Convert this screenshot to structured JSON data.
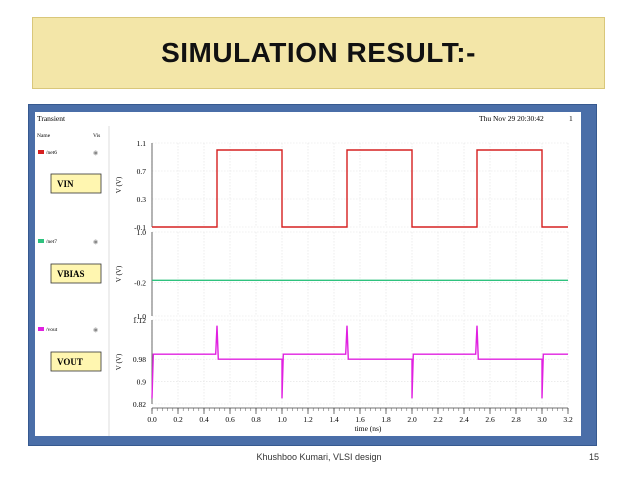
{
  "slide": {
    "title": "SIMULATION RESULT:-",
    "footer_author": "Khushboo Kumari, VLSI design",
    "page_number": "15"
  },
  "sim_window": {
    "title": "Transient",
    "timestamp": "Thu Nov 29 20:30:42",
    "corner_value": "1",
    "list_header_name": "Name",
    "list_header_vis": "Vis",
    "signal_labels": [
      "VIN",
      "VBIAS",
      "VOUT"
    ]
  },
  "chart_data": {
    "type": "line",
    "xlabel": "time (ns)",
    "xlim": [
      0.0,
      3.2
    ],
    "x_ticks": [
      "0.0",
      "0.2",
      "0.4",
      "0.6",
      "0.8",
      "1.0",
      "1.2",
      "1.4",
      "1.6",
      "1.8",
      "2.0",
      "2.2",
      "2.4",
      "2.6",
      "2.8",
      "3.0",
      "3.2"
    ],
    "grid": true,
    "panels": [
      {
        "signal": "/net6",
        "label": "VIN",
        "color": "#d62020",
        "ylabel": "V (V)",
        "y_ticks": [
          "1.1",
          "0.7",
          "0.3",
          "-0.1"
        ],
        "ylim": [
          -0.1,
          1.1
        ],
        "points": [
          [
            0.0,
            -0.1
          ],
          [
            0.5,
            -0.1
          ],
          [
            0.5,
            1.0
          ],
          [
            1.0,
            1.0
          ],
          [
            1.0,
            -0.1
          ],
          [
            1.5,
            -0.1
          ],
          [
            1.5,
            1.0
          ],
          [
            2.0,
            1.0
          ],
          [
            2.0,
            -0.1
          ],
          [
            2.5,
            -0.1
          ],
          [
            2.5,
            1.0
          ],
          [
            3.0,
            1.0
          ],
          [
            3.0,
            -0.1
          ],
          [
            3.2,
            -0.1
          ]
        ]
      },
      {
        "signal": "/net7",
        "label": "VBIAS",
        "color": "#2ec27e",
        "ylabel": "V (V)",
        "y_ticks": [
          "1.0",
          "-0.2",
          "-1.0"
        ],
        "ylim": [
          -1.0,
          1.0
        ],
        "points": [
          [
            0.0,
            -0.15
          ],
          [
            3.2,
            -0.15
          ]
        ]
      },
      {
        "signal": "/vout",
        "label": "VOUT",
        "color": "#e020e0",
        "ylabel": "V (V)",
        "y_ticks": [
          "1.12",
          "0.98",
          "0.9",
          "0.82"
        ],
        "ylim": [
          0.82,
          1.12
        ],
        "points": [
          [
            0.0,
            0.84
          ],
          [
            0.01,
            0.998
          ],
          [
            0.49,
            0.998
          ],
          [
            0.5,
            1.1
          ],
          [
            0.51,
            0.98
          ],
          [
            1.0,
            0.98
          ],
          [
            1.0,
            0.84
          ],
          [
            1.01,
            0.998
          ],
          [
            1.49,
            0.998
          ],
          [
            1.5,
            1.1
          ],
          [
            1.51,
            0.98
          ],
          [
            2.0,
            0.98
          ],
          [
            2.0,
            0.84
          ],
          [
            2.01,
            0.998
          ],
          [
            2.49,
            0.998
          ],
          [
            2.5,
            1.1
          ],
          [
            2.51,
            0.98
          ],
          [
            3.0,
            0.98
          ],
          [
            3.0,
            0.84
          ],
          [
            3.01,
            0.998
          ],
          [
            3.2,
            0.998
          ]
        ]
      }
    ]
  }
}
